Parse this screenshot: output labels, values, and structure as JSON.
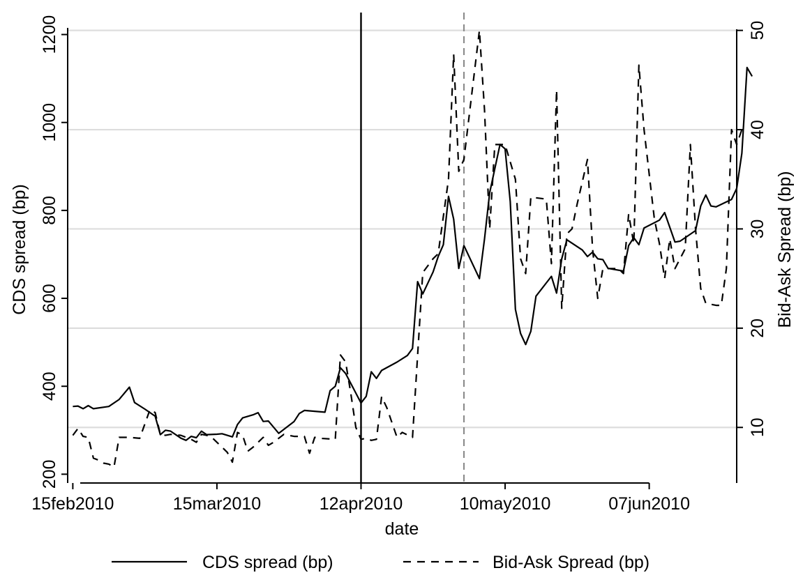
{
  "chart_data": {
    "type": "line",
    "xlabel": "date",
    "ylabel_left": "CDS spread (bp)",
    "ylabel_right": "Bid-Ask Spread (bp)",
    "x_range": [
      "2010-02-14",
      "2010-06-24"
    ],
    "ylim_left": [
      180,
      1250
    ],
    "ylim_right": [
      4.4,
      51.8
    ],
    "x_ticks": [
      {
        "date": "2010-02-15",
        "label": "15feb2010"
      },
      {
        "date": "2010-03-15",
        "label": "15mar2010"
      },
      {
        "date": "2010-04-12",
        "label": "12apr2010"
      },
      {
        "date": "2010-05-10",
        "label": "10may2010"
      },
      {
        "date": "2010-06-07",
        "label": "07jun2010"
      }
    ],
    "y_ticks_left": [
      200,
      400,
      600,
      800,
      1000,
      1200
    ],
    "y_ticks_right": [
      10,
      20,
      30,
      40,
      50
    ],
    "gridlines_right_axis": true,
    "grid_color": "#dddddd",
    "vlines": [
      {
        "date": "2010-04-12",
        "style": "solid",
        "color": "#000000"
      },
      {
        "date": "2010-05-02",
        "style": "dashed",
        "color": "#8c8c8c"
      }
    ],
    "legend_position": "bottom",
    "series": [
      {
        "name": "CDS spread (bp)",
        "axis": "left",
        "style": "solid",
        "color": "#000000",
        "points": [
          [
            "2010-02-15",
            354
          ],
          [
            "2010-02-16",
            355
          ],
          [
            "2010-02-17",
            349
          ],
          [
            "2010-02-18",
            356
          ],
          [
            "2010-02-19",
            349
          ],
          [
            "2010-02-22",
            354
          ],
          [
            "2010-02-24",
            370
          ],
          [
            "2010-02-26",
            398
          ],
          [
            "2010-02-27",
            363
          ],
          [
            "2010-03-01",
            348
          ],
          [
            "2010-03-03",
            332
          ],
          [
            "2010-03-04",
            290
          ],
          [
            "2010-03-05",
            300
          ],
          [
            "2010-03-06",
            298
          ],
          [
            "2010-03-08",
            282
          ],
          [
            "2010-03-09",
            277
          ],
          [
            "2010-03-10",
            286
          ],
          [
            "2010-03-11",
            283
          ],
          [
            "2010-03-12",
            298
          ],
          [
            "2010-03-13",
            290
          ],
          [
            "2010-03-15",
            291
          ],
          [
            "2010-03-16",
            292
          ],
          [
            "2010-03-18",
            285
          ],
          [
            "2010-03-19",
            313
          ],
          [
            "2010-03-20",
            328
          ],
          [
            "2010-03-22",
            335
          ],
          [
            "2010-03-23",
            340
          ],
          [
            "2010-03-24",
            320
          ],
          [
            "2010-03-25",
            321
          ],
          [
            "2010-03-27",
            293
          ],
          [
            "2010-03-30",
            320
          ],
          [
            "2010-03-31",
            338
          ],
          [
            "2010-04-01",
            345
          ],
          [
            "2010-04-02",
            344
          ],
          [
            "2010-04-05",
            341
          ],
          [
            "2010-04-06",
            390
          ],
          [
            "2010-04-07",
            400
          ],
          [
            "2010-04-08",
            442
          ],
          [
            "2010-04-09",
            429
          ],
          [
            "2010-04-12",
            362
          ],
          [
            "2010-04-13",
            377
          ],
          [
            "2010-04-14",
            433
          ],
          [
            "2010-04-15",
            418
          ],
          [
            "2010-04-16",
            436
          ],
          [
            "2010-04-19",
            455
          ],
          [
            "2010-04-21",
            470
          ],
          [
            "2010-04-22",
            486
          ],
          [
            "2010-04-23",
            638
          ],
          [
            "2010-04-24",
            610
          ],
          [
            "2010-04-26",
            660
          ],
          [
            "2010-04-27",
            695
          ],
          [
            "2010-04-28",
            722
          ],
          [
            "2010-04-29",
            832
          ],
          [
            "2010-04-30",
            780
          ],
          [
            "2010-05-01",
            668
          ],
          [
            "2010-05-02",
            720
          ],
          [
            "2010-05-05",
            645
          ],
          [
            "2010-05-06",
            735
          ],
          [
            "2010-05-07",
            840
          ],
          [
            "2010-05-09",
            950
          ],
          [
            "2010-05-10",
            940
          ],
          [
            "2010-05-11",
            820
          ],
          [
            "2010-05-12",
            575
          ],
          [
            "2010-05-13",
            520
          ],
          [
            "2010-05-14",
            495
          ],
          [
            "2010-05-15",
            525
          ],
          [
            "2010-05-16",
            605
          ],
          [
            "2010-05-19",
            650
          ],
          [
            "2010-05-20",
            612
          ],
          [
            "2010-05-21",
            690
          ],
          [
            "2010-05-22",
            733
          ],
          [
            "2010-05-25",
            710
          ],
          [
            "2010-05-26",
            695
          ],
          [
            "2010-05-27",
            705
          ],
          [
            "2010-05-28",
            690
          ],
          [
            "2010-05-29",
            688
          ],
          [
            "2010-05-30",
            668
          ],
          [
            "2010-06-02",
            662
          ],
          [
            "2010-06-03",
            720
          ],
          [
            "2010-06-04",
            738
          ],
          [
            "2010-06-05",
            722
          ],
          [
            "2010-06-06",
            760
          ],
          [
            "2010-06-09",
            778
          ],
          [
            "2010-06-10",
            795
          ],
          [
            "2010-06-12",
            728
          ],
          [
            "2010-06-13",
            730
          ],
          [
            "2010-06-16",
            754
          ],
          [
            "2010-06-17",
            810
          ],
          [
            "2010-06-18",
            835
          ],
          [
            "2010-06-19",
            810
          ],
          [
            "2010-06-20",
            808
          ],
          [
            "2010-06-23",
            825
          ],
          [
            "2010-06-24",
            850
          ],
          [
            "2010-06-25",
            930
          ],
          [
            "2010-06-26",
            1125
          ],
          [
            "2010-06-27",
            1105
          ]
        ]
      },
      {
        "name": "Bid-Ask Spread (bp)",
        "axis": "right",
        "style": "dashed",
        "color": "#000000",
        "points": [
          [
            "2010-02-15",
            9.2
          ],
          [
            "2010-02-16",
            9.9
          ],
          [
            "2010-02-17",
            9.1
          ],
          [
            "2010-02-18",
            9.0
          ],
          [
            "2010-02-19",
            6.9
          ],
          [
            "2010-02-20",
            6.7
          ],
          [
            "2010-02-21",
            6.4
          ],
          [
            "2010-02-22",
            6.3
          ],
          [
            "2010-02-23",
            6.0
          ],
          [
            "2010-02-24",
            9.0
          ],
          [
            "2010-02-26",
            9.0
          ],
          [
            "2010-02-28",
            8.9
          ],
          [
            "2010-03-02",
            11.8
          ],
          [
            "2010-03-03",
            11.5
          ],
          [
            "2010-03-04",
            9.3
          ],
          [
            "2010-03-05",
            9.2
          ],
          [
            "2010-03-06",
            9.3
          ],
          [
            "2010-03-08",
            9.2
          ],
          [
            "2010-03-10",
            8.8
          ],
          [
            "2010-03-11",
            8.5
          ],
          [
            "2010-03-12",
            9.3
          ],
          [
            "2010-03-13",
            9.2
          ],
          [
            "2010-03-14",
            9.0
          ],
          [
            "2010-03-16",
            8.0
          ],
          [
            "2010-03-17",
            7.5
          ],
          [
            "2010-03-18",
            6.5
          ],
          [
            "2010-03-19",
            9.5
          ],
          [
            "2010-03-20",
            9.2
          ],
          [
            "2010-03-21",
            7.6
          ],
          [
            "2010-03-22",
            8.0
          ],
          [
            "2010-03-24",
            9.0
          ],
          [
            "2010-03-25",
            8.2
          ],
          [
            "2010-03-26",
            8.5
          ],
          [
            "2010-03-28",
            9.3
          ],
          [
            "2010-03-30",
            9.1
          ],
          [
            "2010-04-01",
            9.1
          ],
          [
            "2010-04-02",
            7.4
          ],
          [
            "2010-04-03",
            9.0
          ],
          [
            "2010-04-04",
            8.9
          ],
          [
            "2010-04-07",
            8.8
          ],
          [
            "2010-04-08",
            17.3
          ],
          [
            "2010-04-09",
            16.6
          ],
          [
            "2010-04-10",
            13.5
          ],
          [
            "2010-04-11",
            10.0
          ],
          [
            "2010-04-12",
            8.8
          ],
          [
            "2010-04-13",
            8.9
          ],
          [
            "2010-04-14",
            8.7
          ],
          [
            "2010-04-15",
            8.8
          ],
          [
            "2010-04-16",
            13.1
          ],
          [
            "2010-04-17",
            12.0
          ],
          [
            "2010-04-19",
            9.0
          ],
          [
            "2010-04-20",
            9.5
          ],
          [
            "2010-04-22",
            9.0
          ],
          [
            "2010-04-24",
            25.6
          ],
          [
            "2010-04-26",
            27.0
          ],
          [
            "2010-04-27",
            27.5
          ],
          [
            "2010-04-29",
            35.0
          ],
          [
            "2010-04-30",
            47.6
          ],
          [
            "2010-05-01",
            35.8
          ],
          [
            "2010-05-02",
            37.0
          ],
          [
            "2010-05-05",
            50.0
          ],
          [
            "2010-05-06",
            42.0
          ],
          [
            "2010-05-07",
            30.0
          ],
          [
            "2010-05-08",
            38.5
          ],
          [
            "2010-05-10",
            38.5
          ],
          [
            "2010-05-12",
            35.0
          ],
          [
            "2010-05-13",
            27.0
          ],
          [
            "2010-05-14",
            25.5
          ],
          [
            "2010-05-15",
            33.2
          ],
          [
            "2010-05-18",
            33.0
          ],
          [
            "2010-05-19",
            26.5
          ],
          [
            "2010-05-20",
            44.0
          ],
          [
            "2010-05-21",
            22.0
          ],
          [
            "2010-05-22",
            29.5
          ],
          [
            "2010-05-23",
            30.0
          ],
          [
            "2010-05-24",
            32.5
          ],
          [
            "2010-05-26",
            37.0
          ],
          [
            "2010-05-27",
            28.0
          ],
          [
            "2010-05-28",
            23.0
          ],
          [
            "2010-05-29",
            26.0
          ],
          [
            "2010-06-01",
            26.0
          ],
          [
            "2010-06-02",
            25.5
          ],
          [
            "2010-06-03",
            31.5
          ],
          [
            "2010-06-04",
            28.5
          ],
          [
            "2010-06-05",
            46.5
          ],
          [
            "2010-06-06",
            40.0
          ],
          [
            "2010-06-08",
            31.0
          ],
          [
            "2010-06-09",
            28.5
          ],
          [
            "2010-06-10",
            25.0
          ],
          [
            "2010-06-11",
            29.0
          ],
          [
            "2010-06-12",
            26.0
          ],
          [
            "2010-06-14",
            28.0
          ],
          [
            "2010-06-15",
            38.5
          ],
          [
            "2010-06-16",
            30.0
          ],
          [
            "2010-06-17",
            24.0
          ],
          [
            "2010-06-18",
            22.5
          ],
          [
            "2010-06-20",
            22.3
          ],
          [
            "2010-06-21",
            22.3
          ],
          [
            "2010-06-22",
            26.0
          ],
          [
            "2010-06-23",
            40.0
          ],
          [
            "2010-06-24",
            38.5
          ],
          [
            "2010-06-25",
            40.0
          ]
        ]
      }
    ]
  }
}
